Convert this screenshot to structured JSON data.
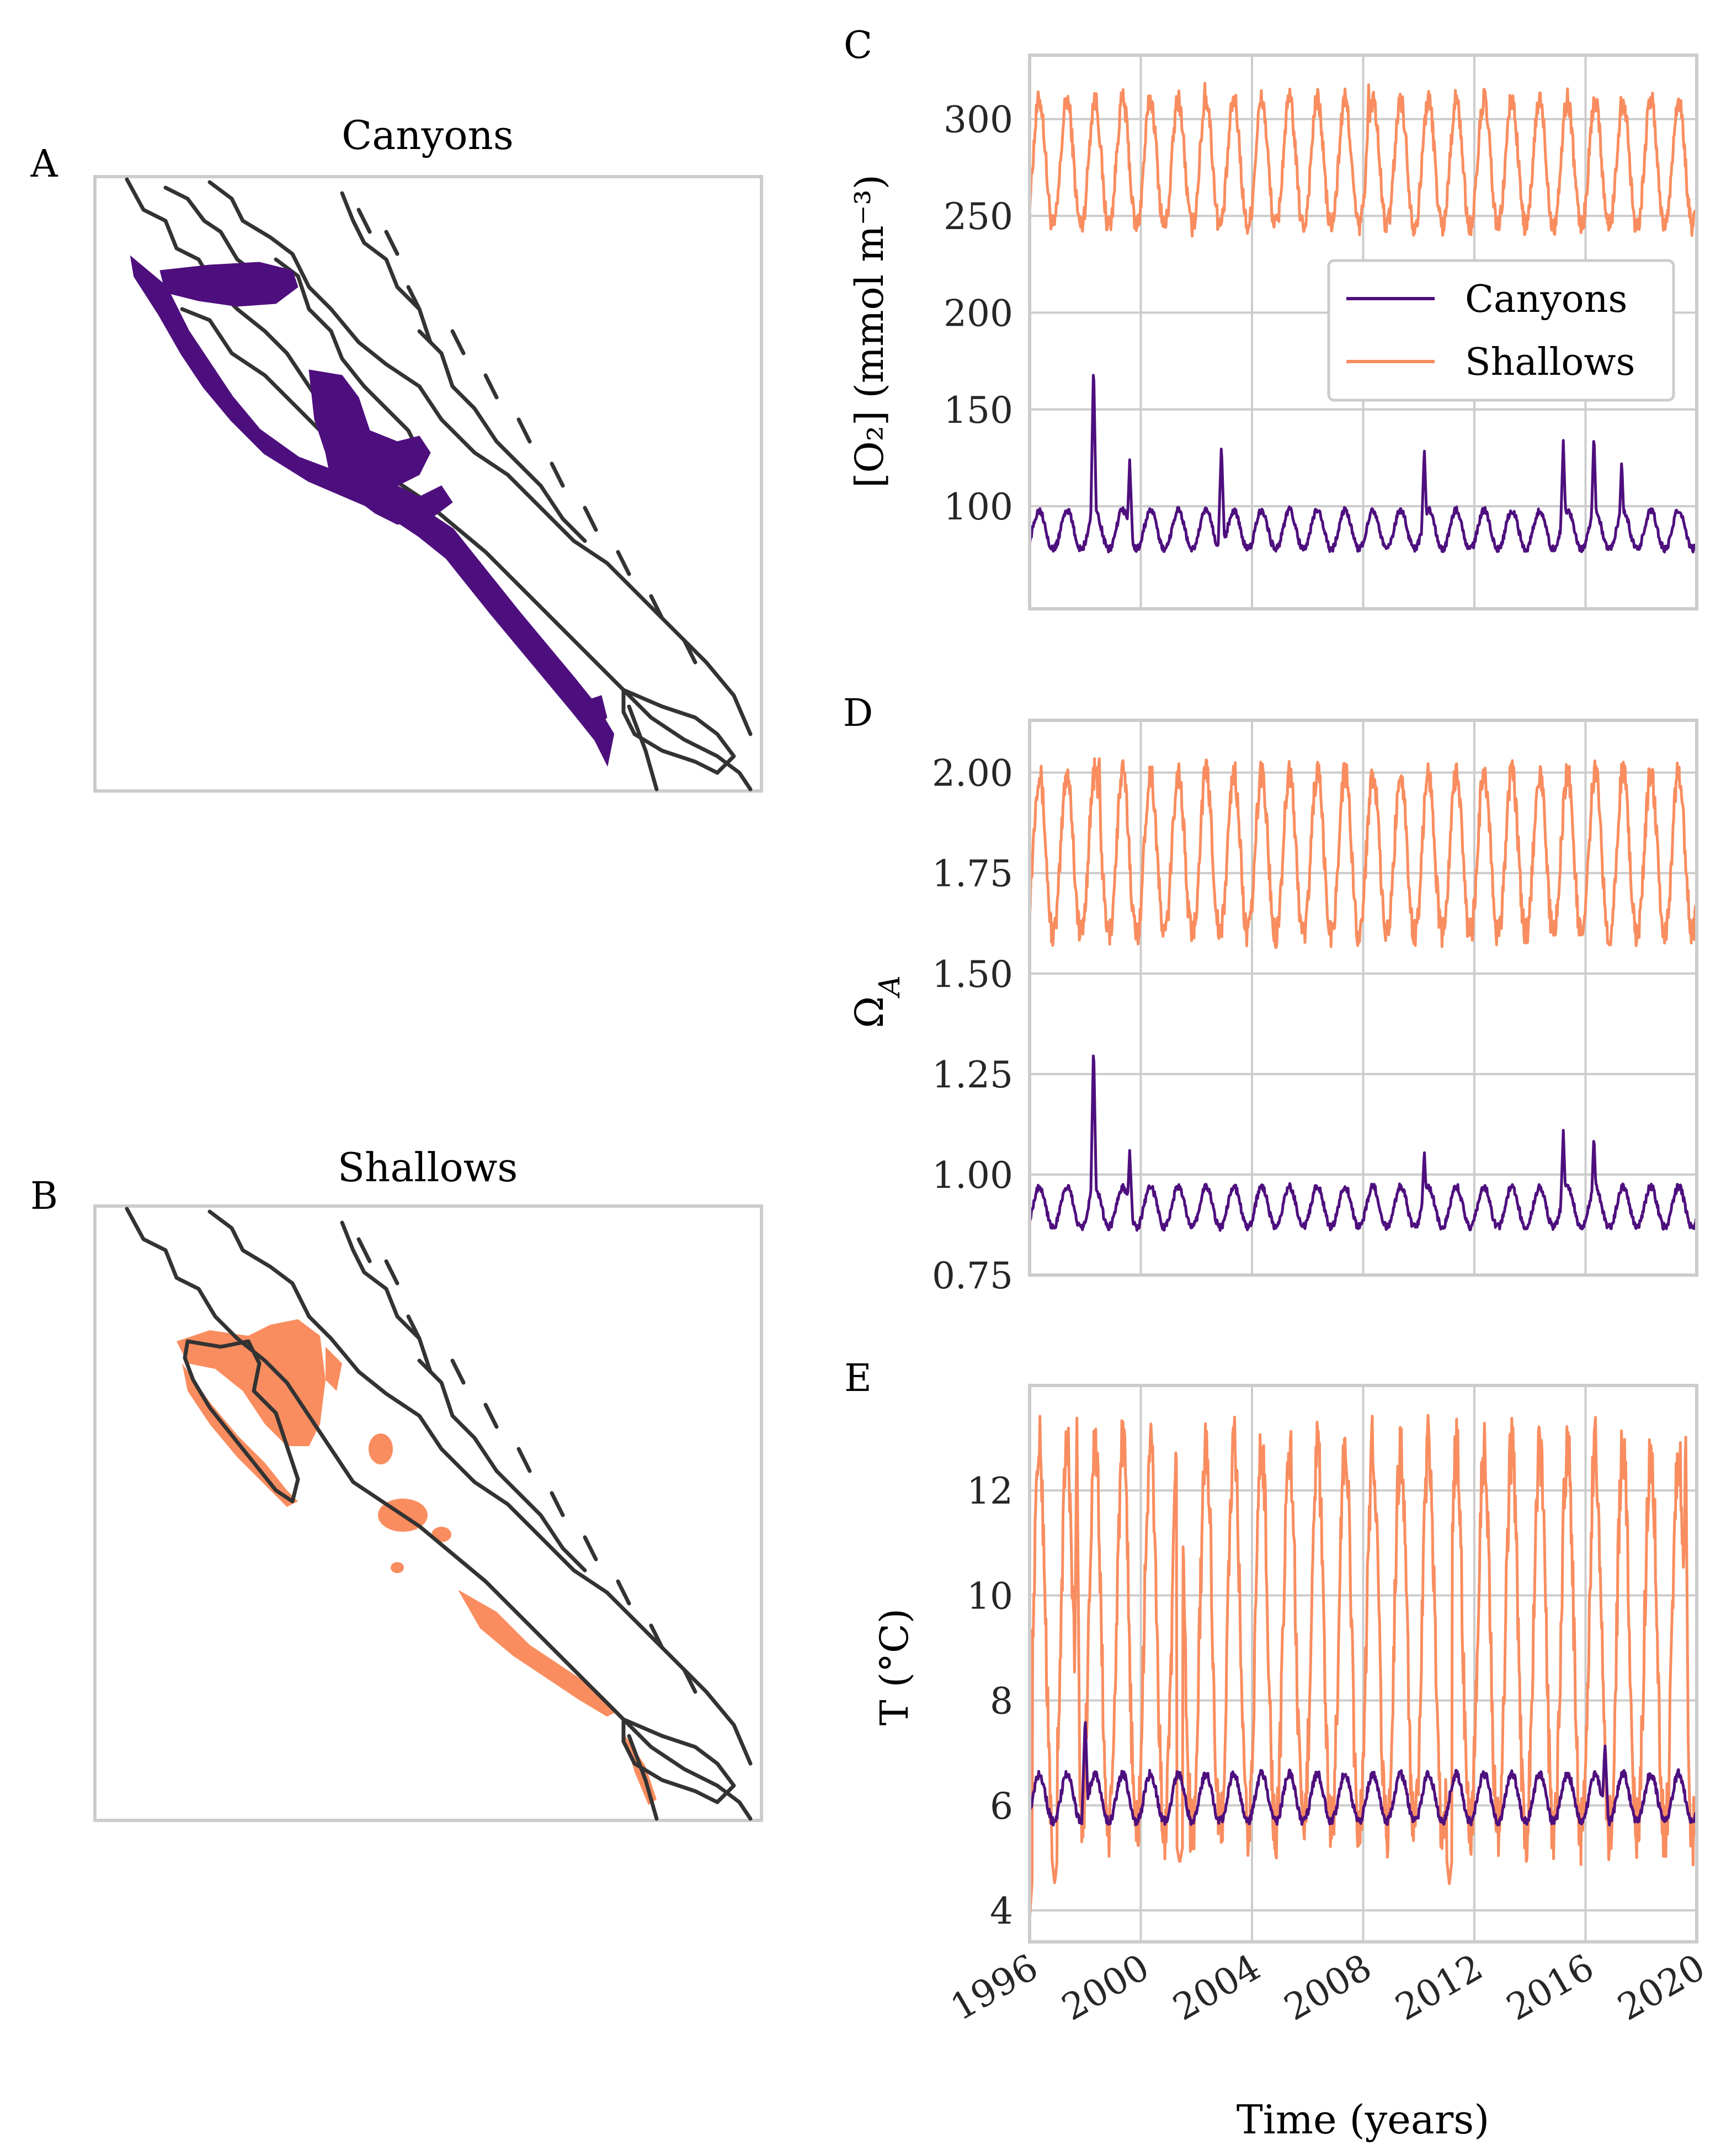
{
  "panels": {
    "a": {
      "letter": "A",
      "title": "Canyons",
      "color": "#4e0f7e"
    },
    "b": {
      "letter": "B",
      "title": "Shallows",
      "color": "#f98d5f"
    },
    "c": {
      "letter": "C"
    },
    "d": {
      "letter": "D"
    },
    "e": {
      "letter": "E"
    }
  },
  "legend": {
    "items": [
      {
        "label": "Canyons",
        "color": "#4e0f7e"
      },
      {
        "label": "Shallows",
        "color": "#f98d5f"
      }
    ]
  },
  "chart_data": [
    {
      "type": "line",
      "panel": "C",
      "ylabel": "[O₂] (mmol m⁻³)",
      "xlim": [
        1996,
        2020
      ],
      "ylim": [
        47,
        333
      ],
      "yticks": [
        100,
        150,
        200,
        250,
        300
      ],
      "xticks": [
        1996,
        2000,
        2004,
        2008,
        2012,
        2016,
        2020
      ],
      "grid": true,
      "legend_position": "center-right",
      "series": [
        {
          "name": "Canyons",
          "color": "#4e0f7e",
          "base": 78,
          "amplitude": 20,
          "peaks": {
            "1998.3": 175,
            "1999.6": 124,
            "2002.9": 132,
            "2010.2": 130,
            "2015.2": 134,
            "2016.3": 138,
            "2017.3": 124
          }
        },
        {
          "name": "Shallows",
          "color": "#f98d5f",
          "base": 245,
          "amplitude": 65,
          "peaks": {
            "2002.3": 322,
            "2008.2": 320
          }
        }
      ]
    },
    {
      "type": "line",
      "panel": "D",
      "ylabel": "Ω_A",
      "xlim": [
        1996,
        2020
      ],
      "ylim": [
        0.75,
        2.13
      ],
      "yticks": [
        0.75,
        1.0,
        1.25,
        1.5,
        1.75,
        2.0
      ],
      "xticks": [
        1996,
        2000,
        2004,
        2008,
        2012,
        2016,
        2020
      ],
      "grid": true,
      "series": [
        {
          "name": "Canyons",
          "color": "#4e0f7e",
          "base": 0.87,
          "amplitude": 0.1,
          "peaks": {
            "1998.3": 1.33,
            "1999.6": 1.06,
            "2010.2": 1.06,
            "2015.2": 1.11,
            "2016.3": 1.1
          }
        },
        {
          "name": "Shallows",
          "color": "#f98d5f",
          "base": 1.6,
          "amplitude": 0.4,
          "peaks": {
            "1998.5": 2.07,
            "2006.4": 2.01
          }
        }
      ]
    },
    {
      "type": "line",
      "panel": "E",
      "ylabel": "T (°C)",
      "xlabel": "Time (years)",
      "xlim": [
        1996,
        2020
      ],
      "ylim": [
        3.4,
        14.0
      ],
      "yticks": [
        4,
        6,
        8,
        10,
        12
      ],
      "xticks": [
        1996,
        2000,
        2004,
        2008,
        2012,
        2016,
        2020
      ],
      "grid": true,
      "series": [
        {
          "name": "Canyons",
          "color": "#4e0f7e",
          "base": 5.7,
          "amplitude": 0.9,
          "peaks": {
            "1998.0": 7.7,
            "2016.7": 7.2
          }
        },
        {
          "name": "Shallows",
          "color": "#f98d5f",
          "base": 5.5,
          "amplitude": 7.3,
          "peaks": {
            "1997.7": 13.5,
            "2019.6": 13.5
          },
          "troughs": {
            "1996.0": 3.8,
            "1996.9": 4.5,
            "2001.4": 4.9,
            "2011.1": 4.5
          }
        }
      ]
    }
  ]
}
